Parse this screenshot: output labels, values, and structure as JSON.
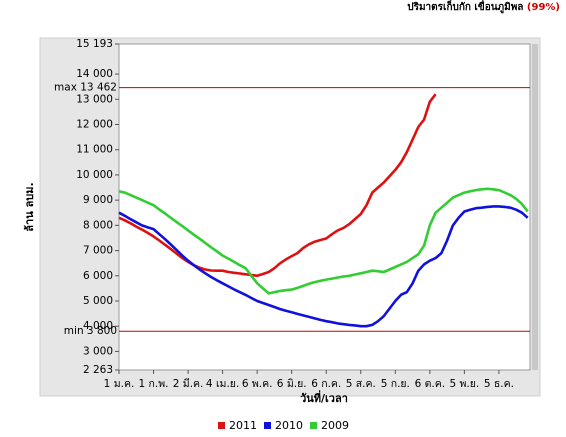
{
  "chart_data": {
    "type": "line",
    "title": "ปริมาตรเก็บกัก เขื่อนภูมิพล",
    "title_percent": "(99%)",
    "y_label": "ล้าน ลบม.",
    "x_label": "วันที่/เวลา",
    "categories": [
      "1 ม.ค.",
      null,
      null,
      null,
      null,
      null,
      "1 ก.พ.",
      null,
      null,
      null,
      null,
      null,
      "2 มี.ค.",
      null,
      null,
      null,
      null,
      null,
      "4 เม.ย.",
      null,
      null,
      null,
      null,
      null,
      "6 พ.ค.",
      null,
      null,
      null,
      null,
      null,
      "6 มิ.ย.",
      null,
      null,
      null,
      null,
      null,
      "6 ก.ค.",
      null,
      null,
      null,
      null,
      null,
      "5 ส.ค.",
      null,
      null,
      null,
      null,
      null,
      "5 ก.ย.",
      null,
      null,
      null,
      null,
      null,
      "6 ต.ค.",
      null,
      null,
      null,
      null,
      null,
      "5 พ.ย.",
      null,
      null,
      null,
      null,
      null,
      "5 ธ.ค.",
      null,
      null,
      null,
      null,
      null
    ],
    "ylim": [
      2263,
      15193
    ],
    "yticks": [
      {
        "value": 2263,
        "label": "2 263"
      },
      {
        "value": 3000,
        "label": "3 000"
      },
      {
        "value": 4000,
        "label": "4 000"
      },
      {
        "value": 5000,
        "label": "5 000"
      },
      {
        "value": 6000,
        "label": "6 000"
      },
      {
        "value": 7000,
        "label": "7 000"
      },
      {
        "value": 8000,
        "label": "8 000"
      },
      {
        "value": 9000,
        "label": "9 000"
      },
      {
        "value": 10000,
        "label": "10 000"
      },
      {
        "value": 11000,
        "label": "11 000"
      },
      {
        "value": 12000,
        "label": "12 000"
      },
      {
        "value": 13000,
        "label": "13 000"
      },
      {
        "value": 14000,
        "label": "14 000"
      },
      {
        "value": 15193,
        "label": "15 193"
      }
    ],
    "ref_lines": [
      {
        "label": "max 13 462",
        "value": 13462,
        "color": "#cc0000"
      },
      {
        "label": "min 3 800",
        "value": 3800,
        "color": "#cc0000"
      }
    ],
    "series": [
      {
        "name": "2011",
        "color": "#dd1111",
        "values": [
          8300,
          8200,
          8080,
          7950,
          7830,
          7700,
          7560,
          7400,
          7230,
          7060,
          6880,
          6700,
          6550,
          6420,
          6320,
          6250,
          6210,
          6200,
          6200,
          6150,
          6120,
          6090,
          6060,
          6030,
          6000,
          6070,
          6150,
          6300,
          6500,
          6650,
          6780,
          6900,
          7100,
          7250,
          7350,
          7420,
          7480,
          7650,
          7800,
          7900,
          8050,
          8250,
          8450,
          8800,
          9300,
          9500,
          9700,
          9950,
          10200,
          10500,
          10900,
          11400,
          11900,
          12200,
          12900,
          13200,
          null,
          null,
          null,
          null,
          null,
          null,
          null,
          null,
          null,
          null,
          null,
          null,
          null,
          null,
          null,
          null
        ]
      },
      {
        "name": "2010",
        "color": "#1111dd",
        "values": [
          8500,
          8380,
          8250,
          8120,
          8000,
          7920,
          7850,
          7650,
          7450,
          7240,
          7020,
          6800,
          6600,
          6420,
          6250,
          6100,
          5950,
          5820,
          5700,
          5580,
          5460,
          5350,
          5240,
          5120,
          5000,
          4920,
          4840,
          4760,
          4680,
          4610,
          4550,
          4490,
          4430,
          4370,
          4310,
          4250,
          4200,
          4160,
          4110,
          4080,
          4050,
          4030,
          4000,
          4000,
          4050,
          4200,
          4400,
          4700,
          5000,
          5250,
          5350,
          5700,
          6200,
          6450,
          6600,
          6700,
          6900,
          7400,
          8000,
          8300,
          8550,
          8620,
          8680,
          8700,
          8730,
          8750,
          8750,
          8730,
          8700,
          8620,
          8500,
          8300
        ]
      },
      {
        "name": "2009",
        "color": "#33cc33",
        "values": [
          9350,
          9300,
          9200,
          9100,
          9000,
          8900,
          8800,
          8630,
          8470,
          8300,
          8130,
          7970,
          7800,
          7630,
          7470,
          7300,
          7130,
          6970,
          6800,
          6680,
          6550,
          6420,
          6300,
          6000,
          5700,
          5500,
          5300,
          5350,
          5400,
          5430,
          5450,
          5520,
          5600,
          5680,
          5750,
          5800,
          5850,
          5890,
          5930,
          5970,
          6000,
          6050,
          6100,
          6150,
          6200,
          6180,
          6150,
          6250,
          6350,
          6450,
          6550,
          6700,
          6850,
          7200,
          8000,
          8500,
          8700,
          8900,
          9100,
          9200,
          9300,
          9350,
          9400,
          9430,
          9450,
          9430,
          9400,
          9300,
          9200,
          9050,
          8850,
          8550
        ]
      }
    ]
  }
}
